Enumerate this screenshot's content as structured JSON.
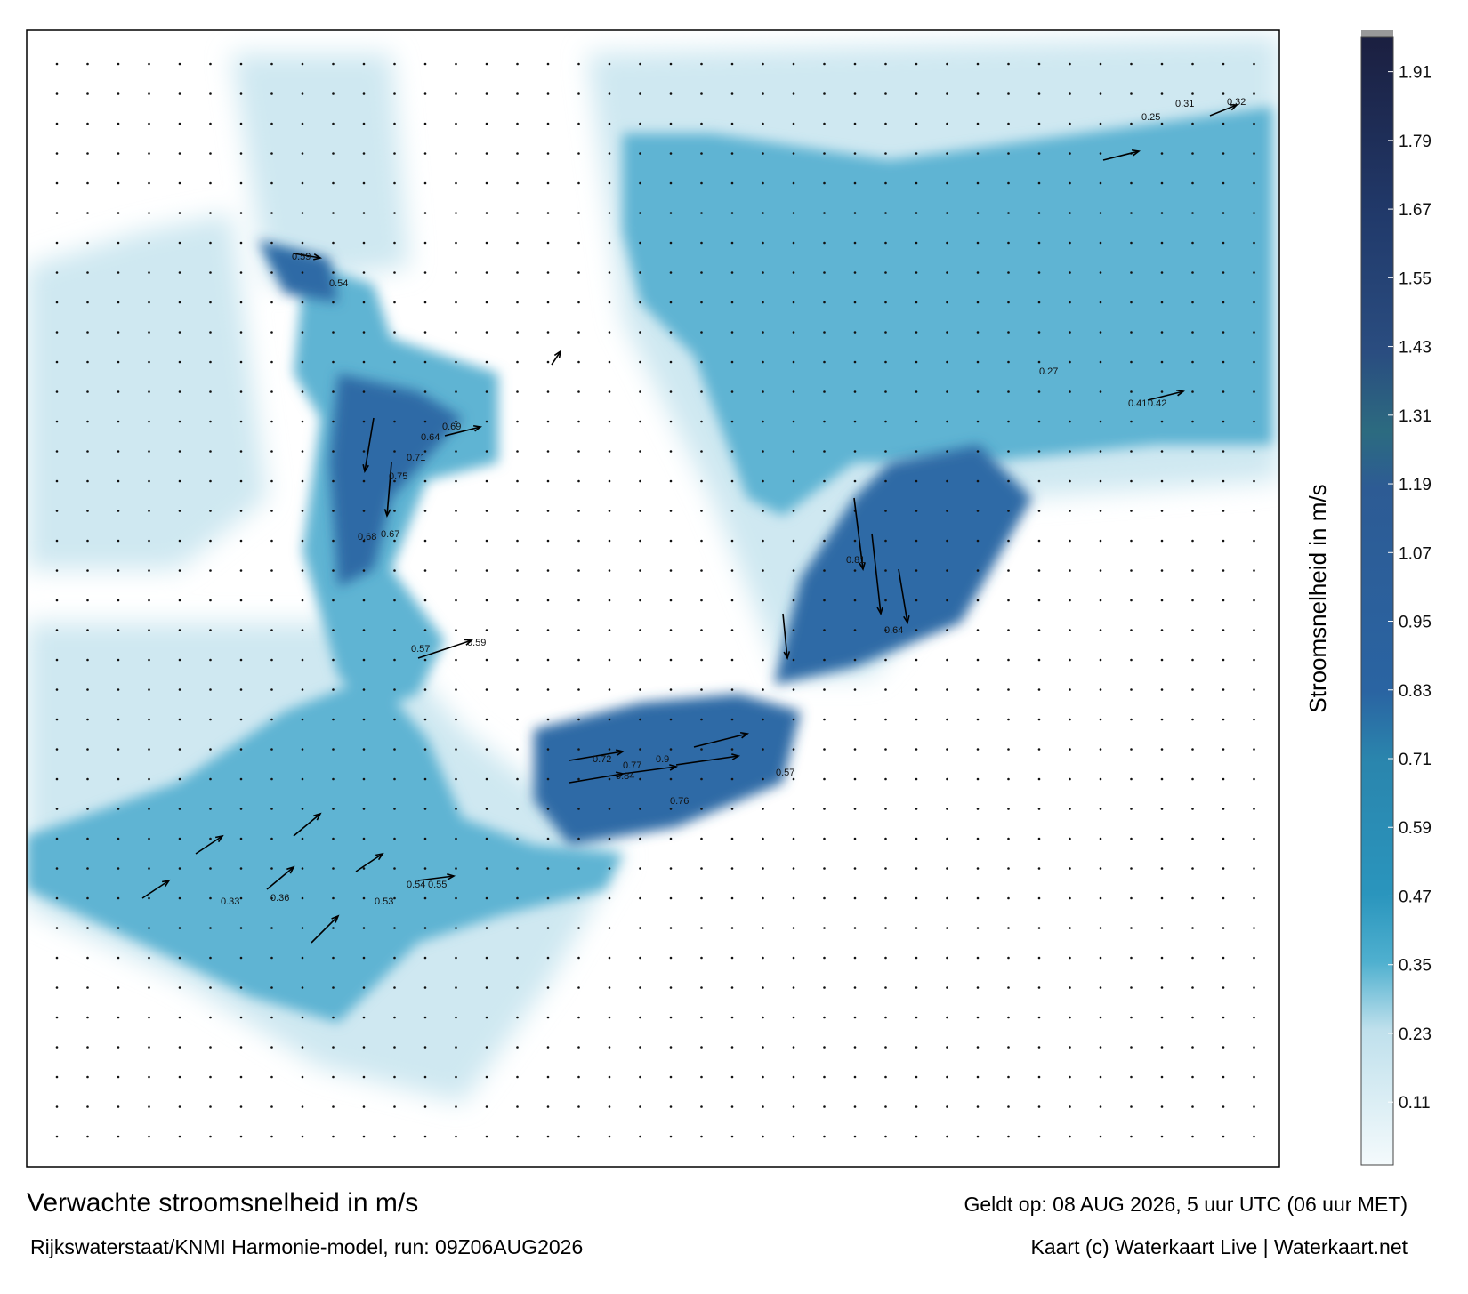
{
  "map": {
    "title": "Verwachte stroomsnelheid in m/s",
    "source": "Rijkswaterstaat/KNMI Harmonie-model, run: 09Z06AUG2026",
    "valid_time": "Geldt op: 08 AUG 2026, 5 uur UTC (06 uur MET)",
    "credit": "Kaart (c) Waterkaart Live | Waterkaart.net",
    "current_labels": [
      0.84,
      0.77,
      0.72,
      0.9,
      0.76,
      0.57,
      0.81,
      0.64,
      0.75,
      0.71,
      0.68,
      0.67,
      0.64,
      0.69,
      0.59,
      0.54,
      0.57,
      0.59,
      0.55,
      0.54,
      0.53,
      0.36,
      0.33,
      0.42,
      0.41,
      0.32,
      0.31,
      0.27,
      0.25
    ]
  },
  "colorbar": {
    "label": "Stroomsnelheid in m/s",
    "lim": [
      0,
      1.97
    ],
    "ticks": [
      0.11,
      0.23,
      0.35,
      0.47,
      0.59,
      0.71,
      0.83,
      0.95,
      1.07,
      1.19,
      1.31,
      1.43,
      1.55,
      1.67,
      1.79,
      1.91
    ]
  }
}
